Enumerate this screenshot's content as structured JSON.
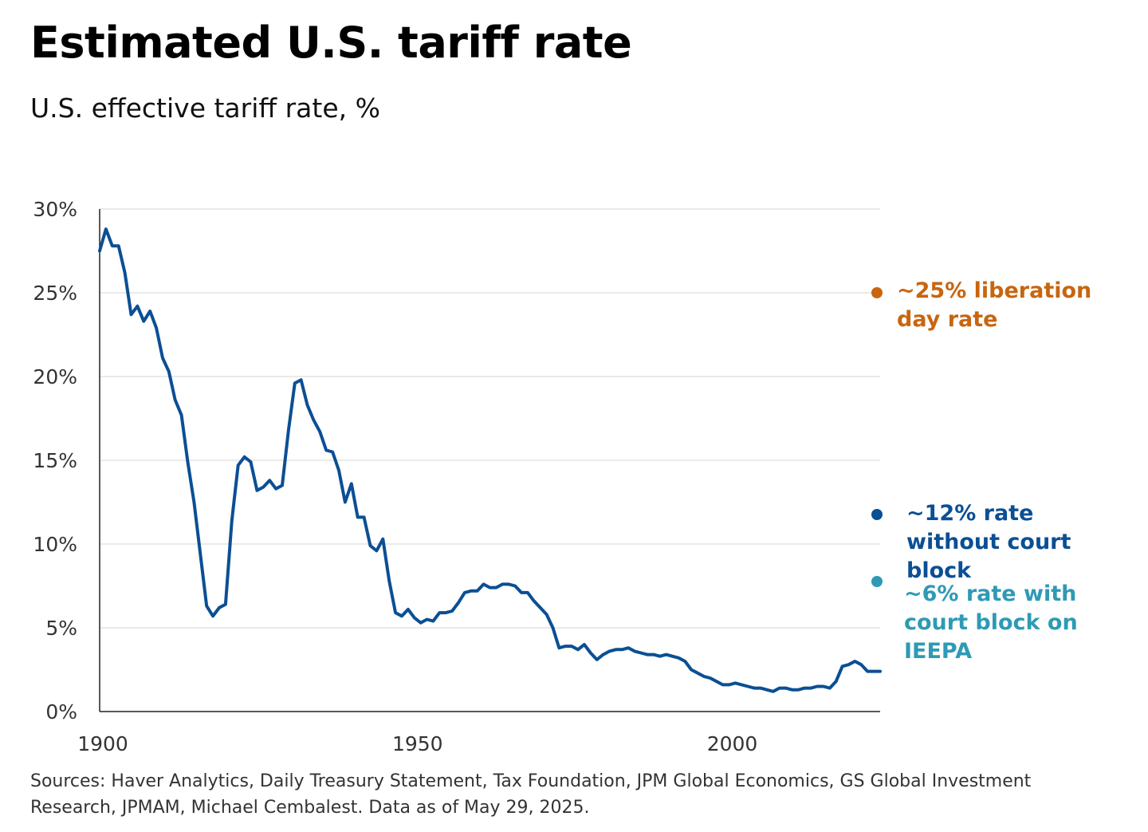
{
  "title": "Estimated U.S. tariff rate",
  "subtitle": "U.S. effective tariff rate, %",
  "sources": "Sources: Haver Analytics, Daily Treasury Statement, Tax Foundation, JPM Global Economics, GS Global Investment Research, JPMAM, Michael Cembalest. Data as of May 29, 2025.",
  "colors": {
    "line": "#0b4f94",
    "liberation": "#c8650f",
    "without_court": "#0b4f94",
    "with_court": "#2e9ab5",
    "grid": "#e3e3e3",
    "axis": "#222222"
  },
  "annotations": [
    {
      "id": "liberation",
      "value": 25,
      "text": "~25% liberation day rate"
    },
    {
      "id": "without_court",
      "value": 12,
      "text": "~12% rate without court block"
    },
    {
      "id": "with_court",
      "value": 6,
      "text": "~6% rate with court block on IEEPA"
    }
  ],
  "chart_data": {
    "type": "line",
    "title": "Estimated U.S. tariff rate",
    "subtitle": "U.S. effective tariff rate, %",
    "xlabel": "",
    "ylabel": "",
    "xlim": [
      1900,
      2024
    ],
    "ylim": [
      0,
      30
    ],
    "x_ticks": [
      1900,
      1950,
      2000
    ],
    "x_tick_labels": [
      "1900",
      "1950",
      "2000"
    ],
    "y_ticks": [
      0,
      5,
      10,
      15,
      20,
      25,
      30
    ],
    "y_tick_labels": [
      "0%",
      "5%",
      "10%",
      "15%",
      "20%",
      "25%",
      "30%"
    ],
    "grid": true,
    "series": [
      {
        "name": "U.S. effective tariff rate",
        "x": [
          1900,
          1901,
          1902,
          1903,
          1904,
          1905,
          1906,
          1907,
          1908,
          1909,
          1910,
          1911,
          1912,
          1913,
          1914,
          1915,
          1916,
          1917,
          1918,
          1919,
          1920,
          1921,
          1922,
          1923,
          1924,
          1925,
          1926,
          1927,
          1928,
          1929,
          1930,
          1931,
          1932,
          1933,
          1934,
          1935,
          1936,
          1937,
          1938,
          1939,
          1940,
          1941,
          1942,
          1943,
          1944,
          1945,
          1946,
          1947,
          1948,
          1949,
          1950,
          1951,
          1952,
          1953,
          1954,
          1955,
          1956,
          1957,
          1958,
          1959,
          1960,
          1961,
          1962,
          1963,
          1964,
          1965,
          1966,
          1967,
          1968,
          1969,
          1970,
          1971,
          1972,
          1973,
          1974,
          1975,
          1976,
          1977,
          1978,
          1979,
          1980,
          1981,
          1982,
          1983,
          1984,
          1985,
          1986,
          1987,
          1988,
          1989,
          1990,
          1991,
          1992,
          1993,
          1994,
          1995,
          1996,
          1997,
          1998,
          1999,
          2000,
          2001,
          2002,
          2003,
          2004,
          2005,
          2006,
          2007,
          2008,
          2009,
          2010,
          2011,
          2012,
          2013,
          2014,
          2015,
          2016,
          2017,
          2018,
          2019,
          2020,
          2021,
          2022,
          2023,
          2024
        ],
        "values": [
          27.5,
          28.8,
          27.8,
          27.8,
          26.2,
          23.7,
          24.2,
          23.3,
          23.9,
          22.9,
          21.1,
          20.3,
          18.6,
          17.7,
          14.9,
          12.5,
          9.4,
          6.3,
          5.7,
          6.2,
          6.4,
          11.4,
          14.7,
          15.2,
          14.9,
          13.2,
          13.4,
          13.8,
          13.3,
          13.5,
          16.8,
          19.6,
          19.8,
          18.3,
          17.4,
          16.7,
          15.6,
          15.5,
          14.4,
          12.5,
          13.6,
          11.6,
          11.6,
          9.9,
          9.6,
          10.3,
          7.8,
          5.9,
          5.7,
          6.1,
          5.6,
          5.3,
          5.5,
          5.4,
          5.9,
          5.9,
          6.0,
          6.5,
          7.1,
          7.2,
          7.2,
          7.6,
          7.4,
          7.4,
          7.6,
          7.6,
          7.5,
          7.1,
          7.1,
          6.6,
          6.2,
          5.8,
          5.0,
          3.8,
          3.9,
          3.9,
          3.7,
          4.0,
          3.5,
          3.1,
          3.4,
          3.6,
          3.7,
          3.7,
          3.8,
          3.6,
          3.5,
          3.4,
          3.4,
          3.3,
          3.4,
          3.3,
          3.2,
          3.0,
          2.5,
          2.3,
          2.1,
          2.0,
          1.8,
          1.6,
          1.6,
          1.7,
          1.6,
          1.5,
          1.4,
          1.4,
          1.3,
          1.2,
          1.4,
          1.4,
          1.3,
          1.3,
          1.4,
          1.4,
          1.5,
          1.5,
          1.4,
          1.8,
          2.7,
          2.8,
          3.0,
          2.8,
          2.4,
          2.4,
          2.4
        ]
      }
    ],
    "annotations": [
      {
        "label": "~25% liberation day rate",
        "value": 25
      },
      {
        "label": "~12% rate without court block",
        "value": 12
      },
      {
        "label": "~6% rate with court block on IEEPA",
        "value": 6
      }
    ]
  }
}
